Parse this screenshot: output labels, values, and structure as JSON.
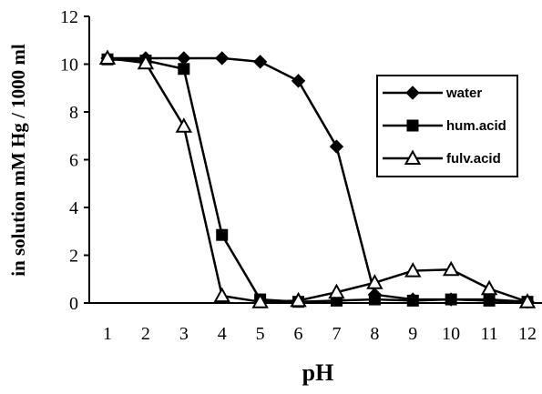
{
  "chart_data": {
    "type": "line",
    "title": "",
    "xlabel": "pH",
    "ylabel": "in solution mM Hg / 1000 ml",
    "x": [
      1,
      2,
      3,
      4,
      5,
      6,
      7,
      8,
      9,
      10,
      11,
      12
    ],
    "xlim": [
      0.5,
      12.5
    ],
    "ylim": [
      0,
      12
    ],
    "x_ticks": [
      "1",
      "2",
      "3",
      "4",
      "5",
      "6",
      "7",
      "8",
      "9",
      "10",
      "11",
      "12"
    ],
    "y_ticks": [
      "0",
      "2",
      "4",
      "6",
      "8",
      "10",
      "12"
    ],
    "grid": false,
    "legend_position": "right",
    "series": [
      {
        "name": "water",
        "marker": "diamond-filled",
        "color": "#000000",
        "values": [
          10.25,
          10.25,
          10.25,
          10.25,
          10.1,
          9.3,
          6.55,
          0.35,
          0.15,
          0.15,
          0.15,
          0.05
        ]
      },
      {
        "name": "hum.acid",
        "marker": "square-filled",
        "color": "#000000",
        "values": [
          10.2,
          10.15,
          9.8,
          2.85,
          0.15,
          0.05,
          0.1,
          0.15,
          0.1,
          0.15,
          0.1,
          0.05
        ]
      },
      {
        "name": "fulv.acid",
        "marker": "triangle-open",
        "color": "#000000",
        "values": [
          10.25,
          10.05,
          7.4,
          0.3,
          0.05,
          0.1,
          0.45,
          0.85,
          1.35,
          1.4,
          0.6,
          0.05
        ]
      }
    ]
  }
}
